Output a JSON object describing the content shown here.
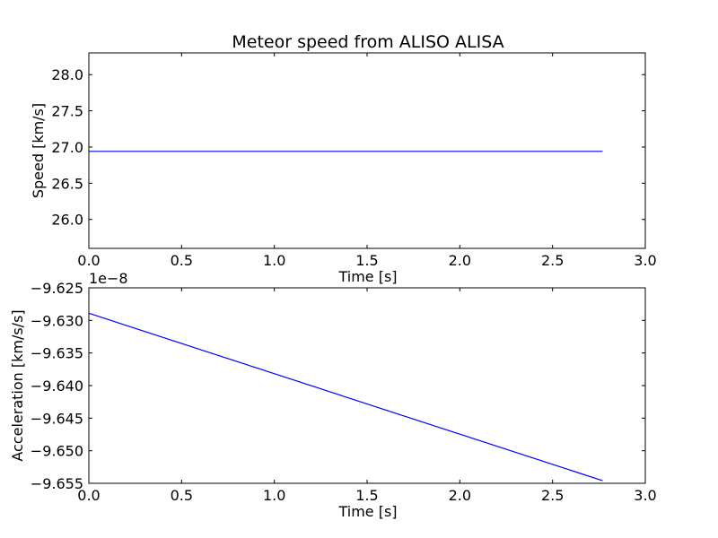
{
  "title": "Meteor speed from  ALISO ALISA",
  "chart_data": [
    {
      "type": "line",
      "title": "Meteor speed from  ALISO ALISA",
      "xlabel": "Time [s]",
      "ylabel": "Speed [km/s]",
      "xlim": [
        0.0,
        3.0
      ],
      "ylim": [
        25.6,
        28.3
      ],
      "xticks": [
        0.0,
        0.5,
        1.0,
        1.5,
        2.0,
        2.5,
        3.0
      ],
      "xtick_labels": [
        "0.0",
        "0.5",
        "1.0",
        "1.5",
        "2.0",
        "2.5",
        "3.0"
      ],
      "yticks": [
        26.0,
        26.5,
        27.0,
        27.5,
        28.0
      ],
      "ytick_labels": [
        "26.0",
        "26.5",
        "27.0",
        "27.5",
        "28.0"
      ],
      "grid": false,
      "series": [
        {
          "color": "#0000ff",
          "x": [
            0.0,
            2.77
          ],
          "values": [
            26.94,
            26.94
          ]
        }
      ]
    },
    {
      "type": "line",
      "xlabel": "Time [s]",
      "ylabel": "Acceleration [km/s/s]",
      "offset_label": "1e−8",
      "xlim": [
        0.0,
        3.0
      ],
      "ylim": [
        -9.655,
        -9.625
      ],
      "xticks": [
        0.0,
        0.5,
        1.0,
        1.5,
        2.0,
        2.5,
        3.0
      ],
      "xtick_labels": [
        "0.0",
        "0.5",
        "1.0",
        "1.5",
        "2.0",
        "2.5",
        "3.0"
      ],
      "yticks": [
        -9.655,
        -9.65,
        -9.645,
        -9.64,
        -9.635,
        -9.63,
        -9.625
      ],
      "ytick_labels": [
        "−9.655",
        "−9.650",
        "−9.645",
        "−9.640",
        "−9.635",
        "−9.630",
        "−9.625"
      ],
      "grid": false,
      "series": [
        {
          "color": "#0000ff",
          "x": [
            0.0,
            2.77
          ],
          "values": [
            -9.6289,
            -9.6546
          ]
        }
      ]
    }
  ]
}
